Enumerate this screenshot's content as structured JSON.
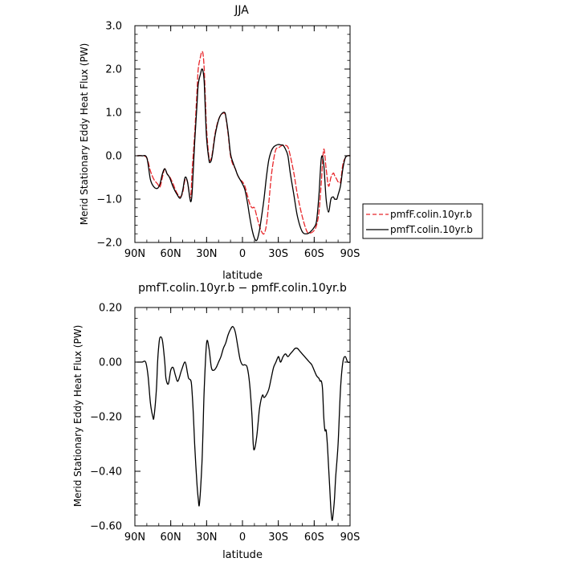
{
  "chart_data": [
    {
      "type": "line",
      "title": "JJA",
      "xlabel": "latitude",
      "ylabel": "Merid Stationary Eddy Heat Flux (PW)",
      "xlim": [
        90,
        -90
      ],
      "ylim": [
        -2.0,
        3.0
      ],
      "x_ticks": [
        90,
        60,
        30,
        0,
        -30,
        -60,
        -90
      ],
      "x_tick_labels": [
        "90N",
        "60N",
        "30N",
        "0",
        "30S",
        "60S",
        "90S"
      ],
      "y_ticks": [
        -2.0,
        -1.0,
        0.0,
        1.0,
        2.0,
        3.0
      ],
      "y_tick_labels": [
        "−2.0",
        "−1.0",
        "0.0",
        "1.0",
        "2.0",
        "3.0"
      ],
      "legend_position": "right",
      "series": [
        {
          "name": "pmfF.colin.10yr.b",
          "color": "#e8262a",
          "dash": "dashed",
          "x": [
            88,
            84,
            80,
            77,
            74,
            71,
            69,
            67,
            65,
            63,
            61,
            58,
            55,
            52,
            50,
            48,
            46,
            44,
            43,
            42,
            40,
            38,
            37,
            35,
            34,
            33,
            32,
            31,
            30,
            28,
            27,
            26,
            25,
            23,
            21,
            19,
            17,
            15,
            14,
            12,
            10,
            8,
            6,
            4,
            2,
            0,
            -2,
            -4,
            -6,
            -8,
            -10,
            -12,
            -14,
            -16,
            -18,
            -20,
            -22,
            -24,
            -26,
            -28,
            -30,
            -32,
            -34,
            -36,
            -38,
            -40,
            -43,
            -46,
            -50,
            -54,
            -57,
            -60,
            -62,
            -64,
            -66,
            -68,
            -70,
            -72,
            -74,
            -76,
            -77,
            -78,
            -79,
            -80,
            -82,
            -84,
            -86,
            -88,
            -90
          ],
          "y": [
            0.0,
            0.0,
            -0.05,
            -0.35,
            -0.55,
            -0.65,
            -0.72,
            -0.5,
            -0.3,
            -0.42,
            -0.48,
            -0.65,
            -0.85,
            -0.95,
            -0.85,
            -0.55,
            -0.6,
            -0.95,
            -0.85,
            -0.3,
            0.5,
            1.5,
            2.0,
            2.3,
            2.4,
            2.35,
            2.0,
            1.3,
            0.6,
            -0.05,
            -0.1,
            -0.05,
            0.1,
            0.5,
            0.75,
            0.9,
            0.97,
            0.98,
            0.9,
            0.5,
            0.0,
            -0.2,
            -0.3,
            -0.45,
            -0.55,
            -0.6,
            -0.7,
            -0.9,
            -1.1,
            -1.2,
            -1.2,
            -1.4,
            -1.6,
            -1.75,
            -1.8,
            -1.6,
            -1.1,
            -0.5,
            -0.1,
            0.15,
            0.18,
            0.22,
            0.25,
            0.24,
            0.2,
            0.0,
            -0.4,
            -0.9,
            -1.4,
            -1.75,
            -1.78,
            -1.72,
            -1.6,
            -1.3,
            -0.6,
            0.15,
            -0.3,
            -0.7,
            -0.5,
            -0.4,
            -0.45,
            -0.5,
            -0.55,
            -0.6,
            -0.6,
            -0.2,
            -0.05,
            0.0,
            0.0
          ]
        },
        {
          "name": "pmfT.colin.10yr.b",
          "color": "#000000",
          "dash": "solid",
          "x": [
            88,
            84,
            80,
            77,
            74,
            71,
            69,
            67,
            65,
            63,
            61,
            58,
            55,
            52,
            50,
            48,
            46,
            44,
            43,
            42,
            40,
            38,
            37,
            35,
            34,
            33,
            32,
            31,
            30,
            28,
            27,
            26,
            25,
            23,
            21,
            19,
            17,
            15,
            14,
            12,
            10,
            8,
            6,
            4,
            2,
            0,
            -2,
            -4,
            -6,
            -8,
            -10,
            -12,
            -14,
            -16,
            -18,
            -20,
            -22,
            -24,
            -26,
            -28,
            -30,
            -32,
            -34,
            -36,
            -38,
            -40,
            -43,
            -46,
            -50,
            -54,
            -57,
            -60,
            -62,
            -64,
            -66,
            -68,
            -70,
            -72,
            -74,
            -76,
            -77,
            -78,
            -79,
            -80,
            -82,
            -84,
            -86,
            -88,
            -90
          ],
          "y": [
            0.0,
            0.0,
            -0.05,
            -0.55,
            -0.72,
            -0.75,
            -0.65,
            -0.42,
            -0.3,
            -0.42,
            -0.5,
            -0.72,
            -0.88,
            -0.98,
            -0.8,
            -0.5,
            -0.6,
            -0.98,
            -1.05,
            -0.8,
            0.3,
            1.2,
            1.65,
            1.9,
            2.0,
            1.95,
            1.7,
            1.0,
            0.4,
            -0.1,
            -0.15,
            -0.1,
            0.05,
            0.45,
            0.72,
            0.9,
            0.98,
            1.0,
            0.92,
            0.55,
            0.05,
            -0.15,
            -0.3,
            -0.45,
            -0.55,
            -0.65,
            -0.78,
            -1.05,
            -1.4,
            -1.7,
            -1.9,
            -1.95,
            -1.75,
            -1.4,
            -1.0,
            -0.5,
            -0.1,
            0.1,
            0.2,
            0.24,
            0.26,
            0.25,
            0.24,
            0.15,
            0.0,
            -0.4,
            -0.9,
            -1.4,
            -1.75,
            -1.8,
            -1.75,
            -1.65,
            -1.5,
            -0.9,
            -0.05,
            -0.2,
            -1.0,
            -1.3,
            -1.0,
            -0.95,
            -1.0,
            -1.0,
            -1.0,
            -0.9,
            -0.7,
            -0.3,
            -0.05,
            0.0,
            0.0
          ]
        }
      ]
    },
    {
      "type": "line",
      "title": "pmfT.colin.10yr.b − pmfF.colin.10yr.b",
      "xlabel": "latitude",
      "ylabel": "Merid Stationary Eddy Heat Flux (PW)",
      "xlim": [
        90,
        -90
      ],
      "ylim": [
        -0.6,
        0.2
      ],
      "x_ticks": [
        90,
        60,
        30,
        0,
        -30,
        -60,
        -90
      ],
      "x_tick_labels": [
        "90N",
        "60N",
        "30N",
        "0",
        "30S",
        "60S",
        "90S"
      ],
      "y_ticks": [
        -0.6,
        -0.4,
        -0.2,
        0.0,
        0.2
      ],
      "y_tick_labels": [
        "−0.60",
        "−0.40",
        "−0.20",
        "0.00",
        "0.20"
      ],
      "series": [
        {
          "color": "#000000",
          "dash": "solid",
          "x": [
            88,
            84,
            81,
            79,
            77,
            75,
            74,
            72,
            71,
            70,
            69,
            67,
            65,
            64,
            62,
            60,
            58,
            56,
            54,
            51,
            48,
            46,
            45,
            43,
            42,
            41,
            40,
            39,
            38,
            37,
            36,
            34,
            33,
            32,
            30,
            28,
            26,
            24,
            22,
            20,
            18,
            16,
            14,
            12,
            10,
            8,
            6,
            4,
            2,
            0,
            -2,
            -4,
            -6,
            -8,
            -9,
            -10,
            -12,
            -14,
            -15,
            -16,
            -17,
            -18,
            -20,
            -22,
            -24,
            -26,
            -28,
            -30,
            -31,
            -32,
            -34,
            -36,
            -38,
            -40,
            -42,
            -44,
            -46,
            -48,
            -50,
            -52,
            -54,
            -56,
            -58,
            -60,
            -62,
            -64,
            -65,
            -66,
            -67,
            -68,
            -69,
            -70,
            -71,
            -72,
            -73,
            -74,
            -75,
            -76,
            -77,
            -78,
            -80,
            -82,
            -84,
            -86,
            -88,
            -90
          ],
          "y": [
            0.0,
            0.0,
            0.0,
            -0.05,
            -0.15,
            -0.2,
            -0.2,
            -0.1,
            0.0,
            0.06,
            0.09,
            0.08,
            0.0,
            -0.06,
            -0.08,
            -0.03,
            -0.02,
            -0.05,
            -0.07,
            -0.03,
            0.0,
            -0.04,
            -0.06,
            -0.07,
            -0.12,
            -0.2,
            -0.3,
            -0.38,
            -0.45,
            -0.5,
            -0.52,
            -0.38,
            -0.25,
            -0.1,
            0.07,
            0.05,
            -0.02,
            -0.03,
            -0.02,
            0.0,
            0.02,
            0.05,
            0.07,
            0.1,
            0.12,
            0.13,
            0.11,
            0.06,
            0.01,
            -0.01,
            -0.01,
            -0.02,
            -0.08,
            -0.2,
            -0.3,
            -0.32,
            -0.27,
            -0.18,
            -0.15,
            -0.13,
            -0.12,
            -0.13,
            -0.12,
            -0.1,
            -0.06,
            -0.02,
            0.0,
            0.02,
            0.01,
            0.0,
            0.02,
            0.03,
            0.02,
            0.03,
            0.04,
            0.05,
            0.05,
            0.04,
            0.03,
            0.02,
            0.01,
            0.0,
            -0.01,
            -0.03,
            -0.05,
            -0.06,
            -0.07,
            -0.07,
            -0.1,
            -0.2,
            -0.25,
            -0.25,
            -0.3,
            -0.38,
            -0.46,
            -0.54,
            -0.58,
            -0.55,
            -0.5,
            -0.42,
            -0.3,
            -0.1,
            0.0,
            0.02,
            0.0,
            0.0
          ]
        }
      ]
    }
  ]
}
